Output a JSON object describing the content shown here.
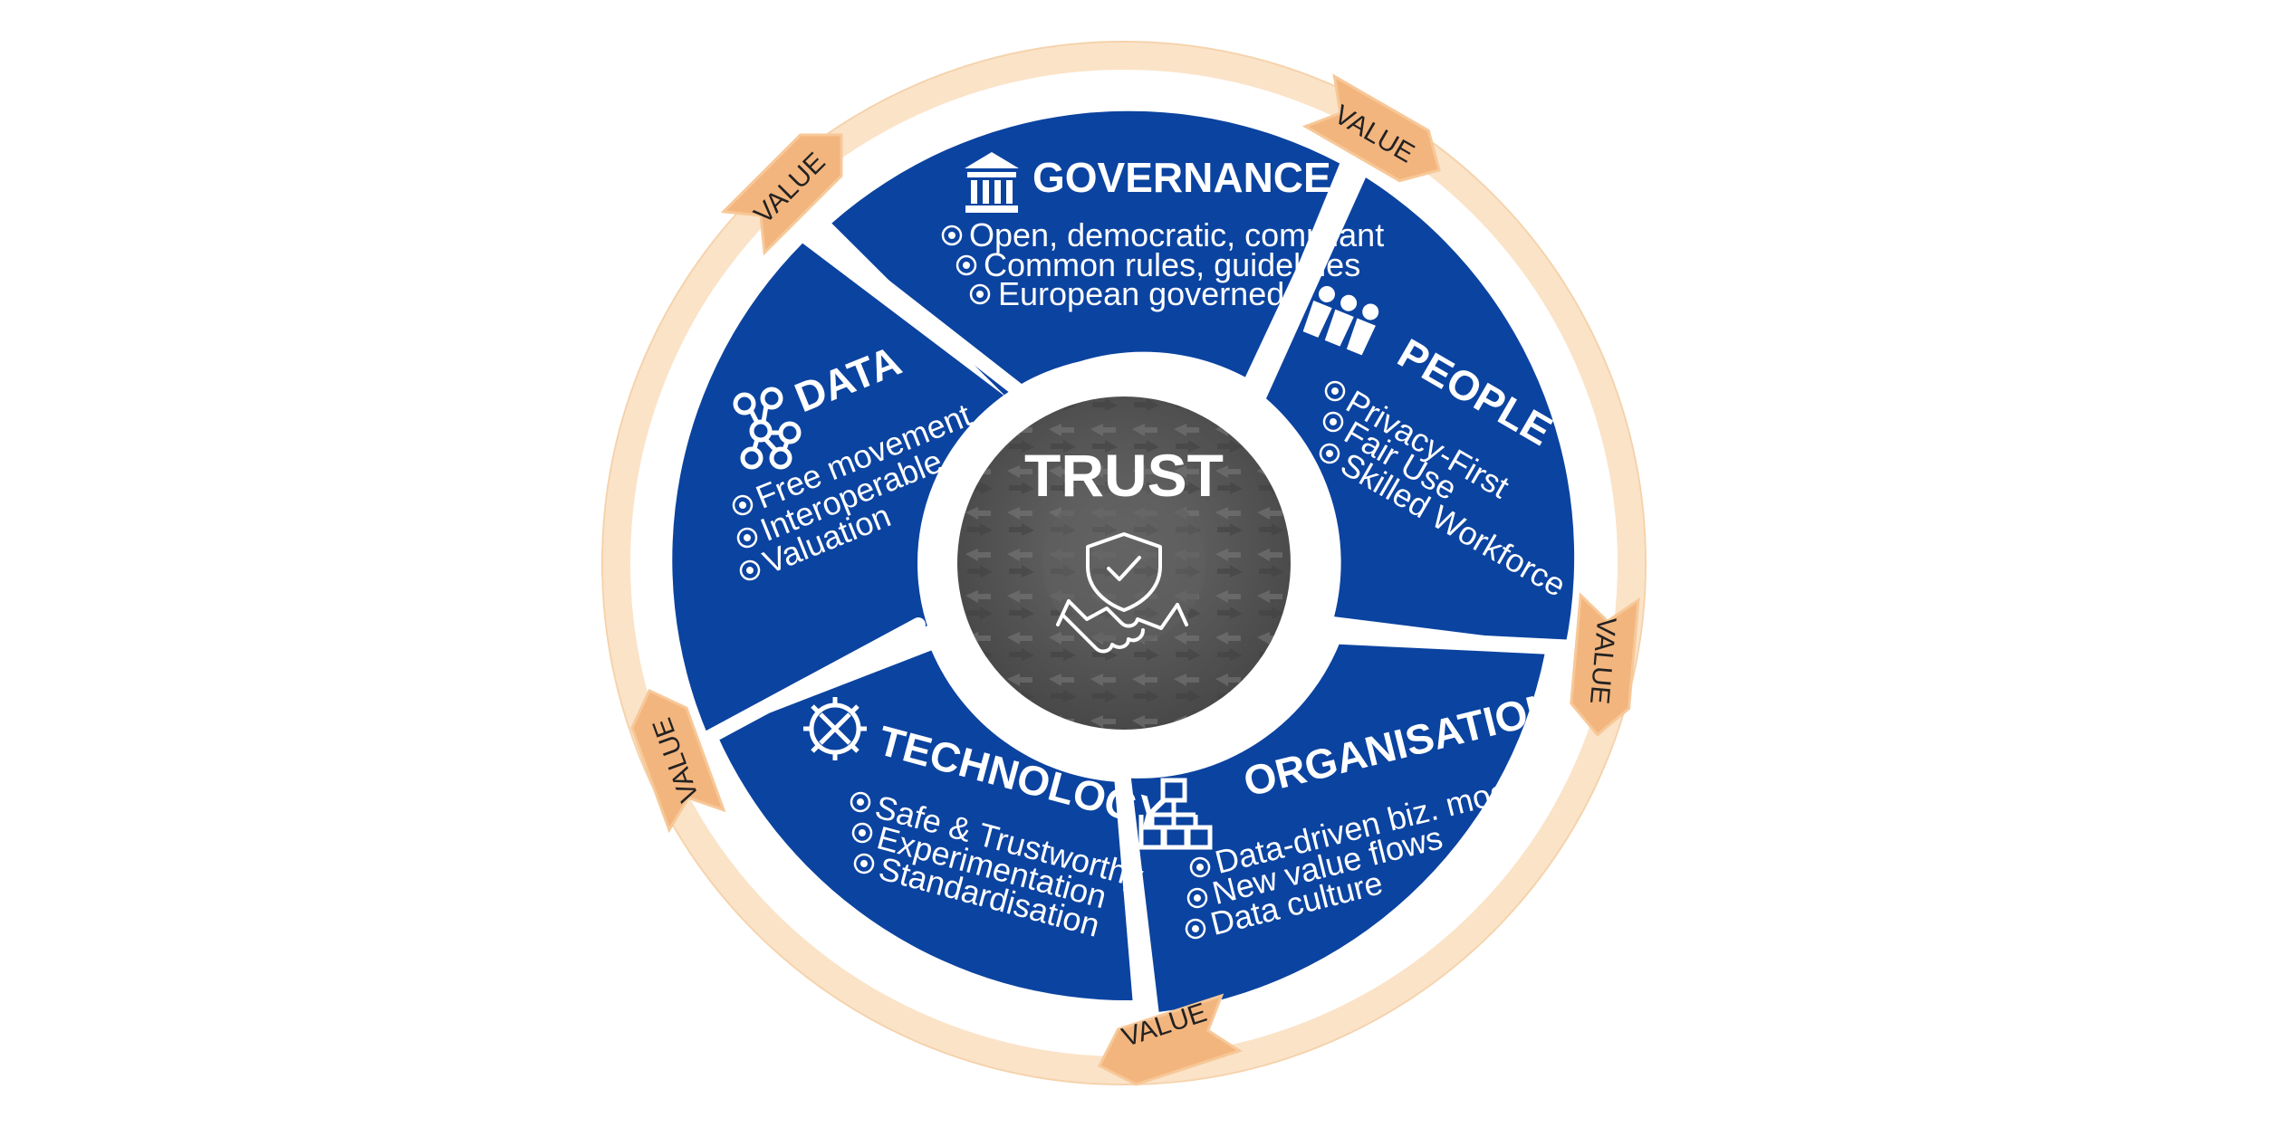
{
  "center": {
    "title": "TRUST",
    "icon": "shield-handshake-icon"
  },
  "value_label": "VALUE",
  "segments": [
    {
      "id": "governance",
      "title": "GOVERNANCE",
      "icon": "government-building-icon",
      "items": [
        "Open, democratic, compliant",
        "Common rules, guidelines",
        "European governed"
      ]
    },
    {
      "id": "people",
      "title": "PEOPLE",
      "icon": "people-group-icon",
      "items": [
        "Privacy-First",
        "Fair Use",
        "Skilled Workforce"
      ]
    },
    {
      "id": "organisations",
      "title": "ORGANISATIONS",
      "icon": "org-chart-icon",
      "items": [
        "Data-driven biz. models",
        "New value flows",
        "Data culture"
      ]
    },
    {
      "id": "technology",
      "title": "TECHNOLOGY",
      "icon": "gear-tools-icon",
      "items": [
        "Safe & Trustworthy",
        "Experimentation",
        "Standardisation"
      ]
    },
    {
      "id": "data",
      "title": "DATA",
      "icon": "data-network-icon",
      "items": [
        "Free movement",
        "Interoperable",
        "Valuation"
      ]
    }
  ],
  "colors": {
    "segment_blue": "#0b43a0",
    "ring_peach": "#fbe3c8",
    "arrow_orange": "#f3b57e",
    "center_grey": "#5a5a5a"
  }
}
